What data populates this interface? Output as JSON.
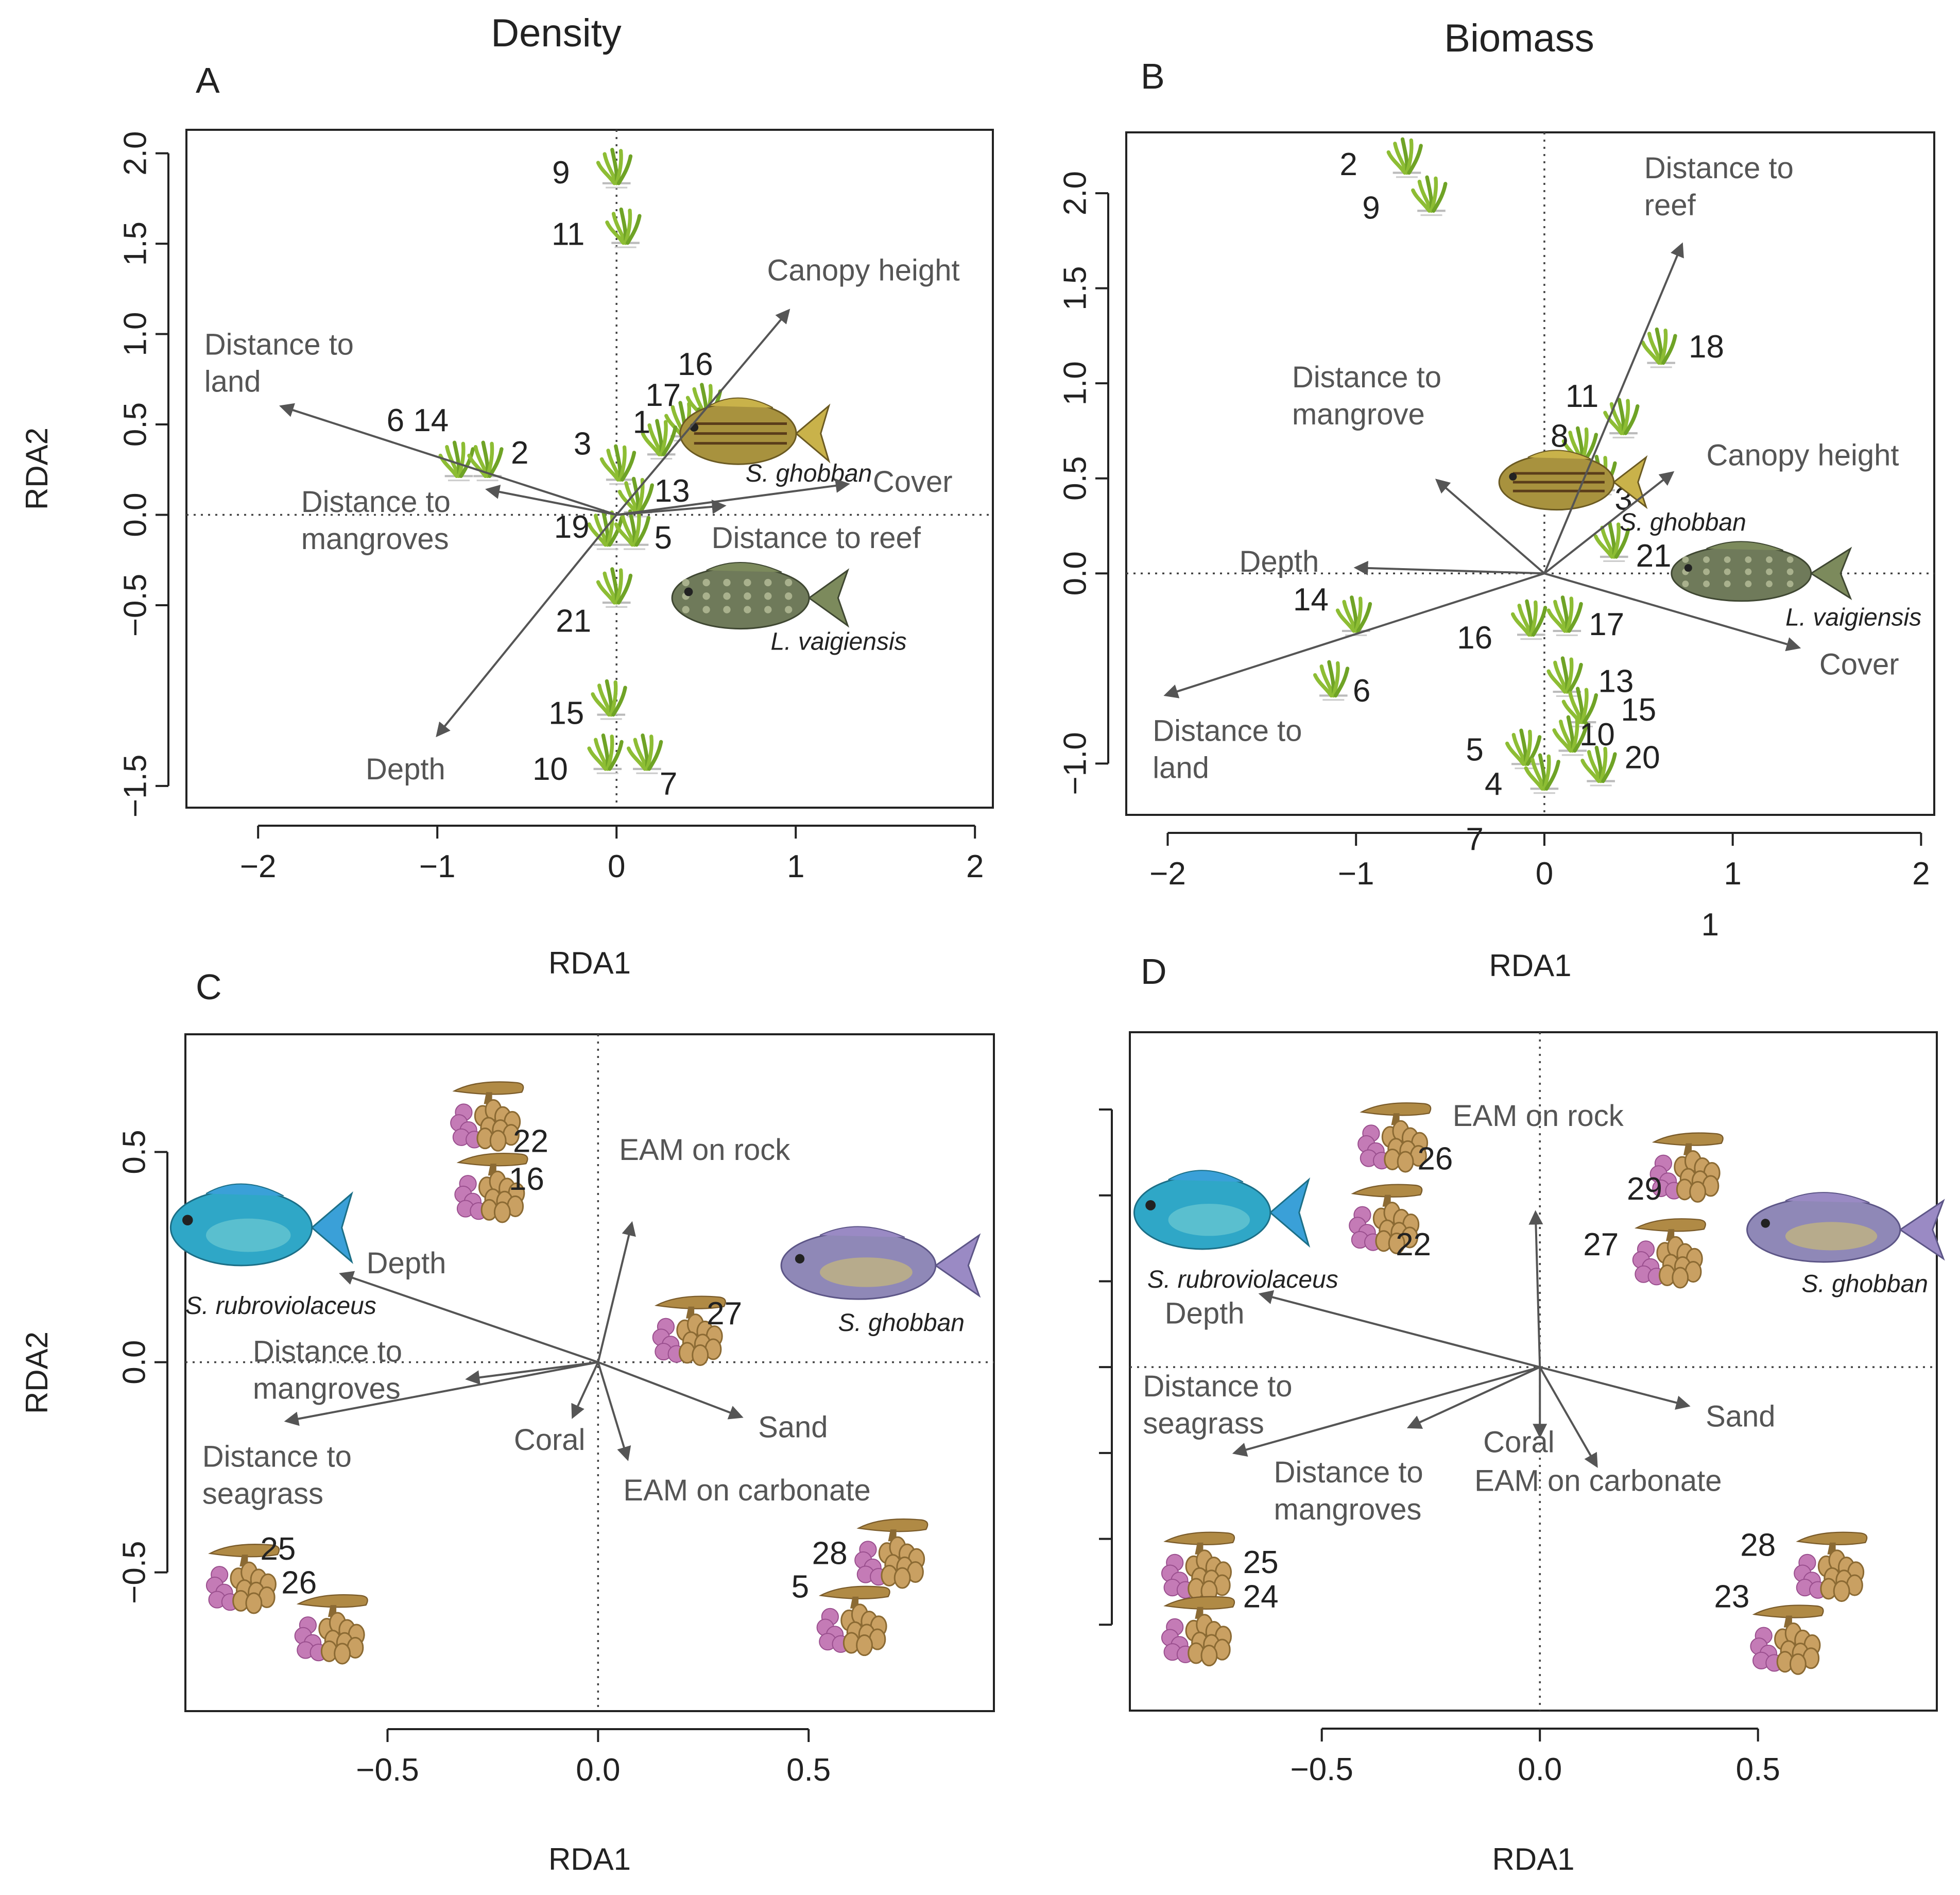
{
  "figure": {
    "column_titles": [
      "Density",
      "Biomass"
    ],
    "ylabel": "RDA2"
  },
  "colors": {
    "axis": "#222222",
    "vector": "#555555",
    "seagrass": "#8dbd34",
    "coral_purple": "#c47bb6",
    "coral_tan": "#b08a45"
  },
  "chart_data": [
    {
      "panel": "A",
      "type": "scatter",
      "title": "Density",
      "xlabel": "RDA1",
      "ylabel": "RDA2",
      "xlim": [
        -2.4,
        2.1
      ],
      "ylim": [
        -1.62,
        2.13
      ],
      "xticks": [
        -2,
        -1,
        0,
        1,
        2
      ],
      "xtick_labels": [
        "−2",
        "−1",
        "0",
        "1",
        "2"
      ],
      "yticks": [
        -1.5,
        -0.5,
        0.0,
        0.5,
        1.0,
        1.5,
        2.0
      ],
      "ytick_labels": [
        "−1.5",
        "−0.5",
        "0.0",
        "0.5",
        "1.0",
        "1.5",
        "2.0"
      ],
      "grid": false,
      "site_icon": "seagrass-icon",
      "vectors": [
        {
          "name": "Distance to land",
          "label": [
            "Distance to",
            "land"
          ],
          "x": -1.87,
          "y": 0.6,
          "lx": -2.3,
          "ly": 0.93
        },
        {
          "name": "Distance to mangroves",
          "label": [
            "Distance to",
            "mangroves"
          ],
          "x": -0.72,
          "y": 0.14,
          "lx": -1.76,
          "ly": 0.06
        },
        {
          "name": "Canopy height",
          "label": [
            "Canopy height"
          ],
          "x": 0.96,
          "y": 1.13,
          "lx": 0.84,
          "ly": 1.34
        },
        {
          "name": "Cover",
          "label": [
            "Cover"
          ],
          "x": 1.29,
          "y": 0.17,
          "lx": 1.43,
          "ly": 0.17
        },
        {
          "name": "Distance to reef",
          "label": [
            "Distance to reef"
          ],
          "x": 0.6,
          "y": 0.05,
          "lx": 0.53,
          "ly": -0.14
        },
        {
          "name": "Depth",
          "label": [
            "Depth"
          ],
          "x": -1.0,
          "y": -1.22,
          "lx": -1.4,
          "ly": -1.42
        }
      ],
      "sites": [
        {
          "label": "9",
          "x": 0.0,
          "y": 1.9,
          "lx": -0.31,
          "ly": 1.88
        },
        {
          "label": "11",
          "x": 0.05,
          "y": 1.57,
          "lx": -0.27,
          "ly": 1.54
        },
        {
          "label": "6 14",
          "x": -0.88,
          "y": 0.28,
          "lx": -1.11,
          "ly": 0.51
        },
        {
          "label": "2",
          "x": -0.72,
          "y": 0.28,
          "lx": -0.54,
          "ly": 0.33
        },
        {
          "label": "16",
          "x": 0.5,
          "y": 0.6,
          "lx": 0.44,
          "ly": 0.82
        },
        {
          "label": "17",
          "x": 0.38,
          "y": 0.5,
          "lx": 0.26,
          "ly": 0.65
        },
        {
          "label": "1",
          "x": 0.25,
          "y": 0.4,
          "lx": 0.14,
          "ly": 0.5
        },
        {
          "label": "3",
          "x": 0.02,
          "y": 0.26,
          "lx": -0.19,
          "ly": 0.38
        },
        {
          "label": "13",
          "x": 0.12,
          "y": 0.08,
          "lx": 0.31,
          "ly": 0.12
        },
        {
          "label": "19",
          "x": -0.05,
          "y": -0.1,
          "lx": -0.25,
          "ly": -0.08
        },
        {
          "label": "5",
          "x": 0.1,
          "y": -0.1,
          "lx": 0.26,
          "ly": -0.14
        },
        {
          "label": "21",
          "x": 0.0,
          "y": -0.42,
          "lx": -0.24,
          "ly": -0.6
        },
        {
          "label": "15",
          "x": -0.03,
          "y": -1.04,
          "lx": -0.28,
          "ly": -1.11
        },
        {
          "label": "10",
          "x": -0.05,
          "y": -1.34,
          "lx": -0.37,
          "ly": -1.42
        },
        {
          "label": "7",
          "x": 0.17,
          "y": -1.34,
          "lx": 0.29,
          "ly": -1.5
        }
      ],
      "species": [
        {
          "name": "S. ghobban",
          "label": "S. ghobban",
          "kind": "wrasse-striped",
          "x": 0.77,
          "y": 0.45,
          "lx": 0.72,
          "ly": 0.22,
          "w": 0.83,
          "h": 0.34
        },
        {
          "name": "L. vaigiensis",
          "label": "L. vaigiensis",
          "kind": "wrasse-mottled",
          "x": 0.8,
          "y": -0.46,
          "lx": 0.86,
          "ly": -0.71,
          "w": 0.98,
          "h": 0.34
        }
      ]
    },
    {
      "panel": "B",
      "type": "scatter",
      "title": "Biomass",
      "xlabel": "RDA1",
      "ylabel": "RDA2",
      "xlim": [
        -2.22,
        2.07
      ],
      "ylim": [
        -1.27,
        2.32
      ],
      "xticks": [
        -2,
        -1,
        0,
        1,
        2
      ],
      "xtick_labels": [
        "−2",
        "−1",
        "0",
        "1",
        "2"
      ],
      "yticks": [
        -1.0,
        0.0,
        0.5,
        1.0,
        1.5,
        2.0
      ],
      "ytick_labels": [
        "−1.0",
        "0.0",
        "0.5",
        "1.0",
        "1.5",
        "2.0"
      ],
      "grid": false,
      "site_icon": "seagrass-icon",
      "vectors": [
        {
          "name": "Distance to reef",
          "label": [
            "Distance to",
            "reef"
          ],
          "x": 0.73,
          "y": 1.73,
          "lx": 0.53,
          "ly": 2.12
        },
        {
          "name": "Distance to mangrove",
          "label": [
            "Distance to",
            "mangrove"
          ],
          "x": -0.57,
          "y": 0.49,
          "lx": -1.34,
          "ly": 1.02
        },
        {
          "name": "Canopy height",
          "label": [
            "Canopy height"
          ],
          "x": 0.68,
          "y": 0.53,
          "lx": 0.86,
          "ly": 0.61
        },
        {
          "name": "Depth",
          "label": [
            "Depth"
          ],
          "x": -1.0,
          "y": 0.03,
          "lx": -1.62,
          "ly": 0.05
        },
        {
          "name": "Cover",
          "label": [
            "Cover"
          ],
          "x": 1.35,
          "y": -0.39,
          "lx": 1.46,
          "ly": -0.49
        },
        {
          "name": "Distance to land",
          "label": [
            "Distance to",
            "land"
          ],
          "x": -2.01,
          "y": -0.64,
          "lx": -2.08,
          "ly": -0.84
        }
      ],
      "sites": [
        {
          "label": "2",
          "x": -0.73,
          "y": 2.17,
          "lx": -1.04,
          "ly": 2.14
        },
        {
          "label": "9",
          "x": -0.6,
          "y": 1.97,
          "lx": -0.92,
          "ly": 1.91
        },
        {
          "label": "18",
          "x": 0.62,
          "y": 1.17,
          "lx": 0.86,
          "ly": 1.18
        },
        {
          "label": "11",
          "x": 0.42,
          "y": 0.8,
          "lx": 0.2,
          "ly": 0.92
        },
        {
          "label": "8",
          "x": 0.2,
          "y": 0.65,
          "lx": 0.08,
          "ly": 0.71
        },
        {
          "label": "3",
          "x": 0.3,
          "y": 0.5,
          "lx": 0.42,
          "ly": 0.38
        },
        {
          "label": "21",
          "x": 0.37,
          "y": 0.15,
          "lx": 0.58,
          "ly": 0.08
        },
        {
          "label": "14",
          "x": -1.0,
          "y": -0.24,
          "lx": -1.24,
          "ly": -0.15
        },
        {
          "label": "6",
          "x": -1.12,
          "y": -0.58,
          "lx": -0.97,
          "ly": -0.63
        },
        {
          "label": "16",
          "x": -0.07,
          "y": -0.26,
          "lx": -0.37,
          "ly": -0.35
        },
        {
          "label": "17",
          "x": 0.12,
          "y": -0.24,
          "lx": 0.33,
          "ly": -0.28
        },
        {
          "label": "13",
          "x": 0.12,
          "y": -0.56,
          "lx": 0.38,
          "ly": -0.58
        },
        {
          "label": "15",
          "x": 0.2,
          "y": -0.72,
          "lx": 0.5,
          "ly": -0.73
        },
        {
          "label": "10",
          "x": 0.15,
          "y": -0.87,
          "lx": 0.28,
          "ly": -0.86
        },
        {
          "label": "20",
          "x": 0.3,
          "y": -1.03,
          "lx": 0.52,
          "ly": -0.98
        },
        {
          "label": "5",
          "x": -0.1,
          "y": -0.94,
          "lx": -0.37,
          "ly": -0.94
        },
        {
          "label": "4",
          "x": 0.0,
          "y": -1.07,
          "lx": -0.27,
          "ly": -1.12
        },
        {
          "label": "7",
          "x": -0.37,
          "y": -1.41,
          "lx": -0.37,
          "ly": -1.41
        },
        {
          "label": "1",
          "x": 0.88,
          "y": -1.86,
          "lx": 0.88,
          "ly": -1.86
        }
      ],
      "species": [
        {
          "name": "S. ghobban",
          "label": "S. ghobban",
          "kind": "wrasse-striped",
          "x": 0.15,
          "y": 0.48,
          "lx": 0.4,
          "ly": 0.26,
          "w": 0.78,
          "h": 0.29
        },
        {
          "name": "L. vaigiensis",
          "label": "L. vaigiensis",
          "kind": "wrasse-mottled",
          "x": 1.15,
          "y": 0.0,
          "lx": 1.28,
          "ly": -0.24,
          "w": 0.95,
          "h": 0.29
        }
      ]
    },
    {
      "panel": "C",
      "type": "scatter",
      "title": "",
      "xlabel": "RDA1",
      "ylabel": "RDA2",
      "xlim": [
        -0.98,
        0.94
      ],
      "ylim": [
        -0.83,
        0.78
      ],
      "xticks": [
        -0.5,
        0.0,
        0.5
      ],
      "xtick_labels": [
        "−0.5",
        "0.0",
        "0.5"
      ],
      "yticks": [
        -0.5,
        0.0,
        0.5
      ],
      "ytick_labels": [
        "−0.5",
        "0.0",
        "0.5"
      ],
      "grid": false,
      "site_icon": "coral-icon",
      "vectors": [
        {
          "name": "EAM on rock",
          "label": [
            "EAM on rock"
          ],
          "x": 0.08,
          "y": 0.33,
          "lx": 0.05,
          "ly": 0.5
        },
        {
          "name": "Depth",
          "label": [
            "Depth"
          ],
          "x": -0.61,
          "y": 0.21,
          "lx": -0.55,
          "ly": 0.23
        },
        {
          "name": "Distance to mangroves",
          "label": [
            "Distance to",
            "mangroves"
          ],
          "x": -0.31,
          "y": -0.04,
          "lx": -0.82,
          "ly": 0.02
        },
        {
          "name": "Distance to seagrass",
          "label": [
            "Distance to",
            "seagrass"
          ],
          "x": -0.74,
          "y": -0.14,
          "lx": -0.94,
          "ly": -0.23
        },
        {
          "name": "Coral",
          "label": [
            "Coral"
          ],
          "x": -0.06,
          "y": -0.13,
          "lx": -0.2,
          "ly": -0.19
        },
        {
          "name": "Sand",
          "label": [
            "Sand"
          ],
          "x": 0.34,
          "y": -0.13,
          "lx": 0.38,
          "ly": -0.16
        },
        {
          "name": "EAM on carbonate",
          "label": [
            "EAM on carbonate"
          ],
          "x": 0.07,
          "y": -0.23,
          "lx": 0.06,
          "ly": -0.31
        }
      ],
      "sites": [
        {
          "label": "22",
          "x": -0.26,
          "y": 0.6,
          "lx": -0.16,
          "ly": 0.52
        },
        {
          "label": "16",
          "x": -0.25,
          "y": 0.43,
          "lx": -0.17,
          "ly": 0.43
        },
        {
          "label": "27",
          "x": 0.22,
          "y": 0.09,
          "lx": 0.3,
          "ly": 0.11
        },
        {
          "label": "25",
          "x": -0.84,
          "y": -0.5,
          "lx": -0.76,
          "ly": -0.45
        },
        {
          "label": "26",
          "x": -0.63,
          "y": -0.62,
          "lx": -0.71,
          "ly": -0.53
        },
        {
          "label": "28",
          "x": 0.7,
          "y": -0.44,
          "lx": 0.55,
          "ly": -0.46
        },
        {
          "label": "5",
          "x": 0.61,
          "y": -0.6,
          "lx": 0.48,
          "ly": -0.54
        }
      ],
      "species": [
        {
          "name": "S. rubroviolaceus",
          "label": "S. rubroviolaceus",
          "kind": "parrotfish-blue",
          "x": -0.8,
          "y": 0.32,
          "lx": -0.98,
          "ly": 0.13,
          "w": 0.43,
          "h": 0.18
        },
        {
          "name": "S. ghobban",
          "label": "S. ghobban",
          "kind": "parrotfish-purple",
          "x": 0.67,
          "y": 0.23,
          "lx": 0.57,
          "ly": 0.09,
          "w": 0.47,
          "h": 0.16
        }
      ]
    },
    {
      "panel": "D",
      "type": "scatter",
      "title": "",
      "xlabel": "RDA1",
      "ylabel": "RDA2",
      "xlim": [
        -0.94,
        0.91
      ],
      "ylim": [
        -0.8,
        0.78
      ],
      "xticks": [
        -0.5,
        0.0,
        0.5
      ],
      "xtick_labels": [
        "−0.5",
        "0.0",
        "0.5"
      ],
      "yticks": [
        -0.6,
        -0.4,
        -0.2,
        0.0,
        0.2,
        0.4,
        0.6
      ],
      "ytick_labels": [
        "",
        "",
        "",
        "",
        "",
        "",
        ""
      ],
      "grid": false,
      "site_icon": "coral-icon",
      "vectors": [
        {
          "name": "EAM on rock",
          "label": [
            "EAM on rock"
          ],
          "x": -0.01,
          "y": 0.36,
          "lx": -0.2,
          "ly": 0.58
        },
        {
          "name": "Depth",
          "label": [
            "Depth"
          ],
          "x": -0.64,
          "y": 0.17,
          "lx": -0.86,
          "ly": 0.12
        },
        {
          "name": "Distance to seagrass",
          "label": [
            "Distance to",
            "seagrass"
          ],
          "x": -0.7,
          "y": -0.2,
          "lx": -0.91,
          "ly": -0.05
        },
        {
          "name": "Distance to mangroves",
          "label": [
            "Distance to",
            "mangroves"
          ],
          "x": -0.3,
          "y": -0.14,
          "lx": -0.61,
          "ly": -0.25
        },
        {
          "name": "Coral",
          "label": [
            "Coral"
          ],
          "x": 0.0,
          "y": -0.16,
          "lx": -0.13,
          "ly": -0.18
        },
        {
          "name": "EAM on carbonate",
          "label": [
            "EAM on carbonate"
          ],
          "x": 0.13,
          "y": -0.23,
          "lx": -0.15,
          "ly": -0.27
        },
        {
          "name": "Sand",
          "label": [
            "Sand"
          ],
          "x": 0.34,
          "y": -0.09,
          "lx": 0.38,
          "ly": -0.12
        }
      ],
      "sites": [
        {
          "label": "26",
          "x": -0.33,
          "y": 0.55,
          "lx": -0.24,
          "ly": 0.48
        },
        {
          "label": "22",
          "x": -0.35,
          "y": 0.36,
          "lx": -0.29,
          "ly": 0.28
        },
        {
          "label": "29",
          "x": 0.34,
          "y": 0.48,
          "lx": 0.24,
          "ly": 0.41
        },
        {
          "label": "27",
          "x": 0.3,
          "y": 0.28,
          "lx": 0.14,
          "ly": 0.28
        },
        {
          "label": "25",
          "x": -0.78,
          "y": -0.45,
          "lx": -0.64,
          "ly": -0.46
        },
        {
          "label": "24",
          "x": -0.78,
          "y": -0.6,
          "lx": -0.64,
          "ly": -0.54
        },
        {
          "label": "28",
          "x": 0.67,
          "y": -0.45,
          "lx": 0.5,
          "ly": -0.42
        },
        {
          "label": "23",
          "x": 0.57,
          "y": -0.62,
          "lx": 0.44,
          "ly": -0.54
        }
      ],
      "species": [
        {
          "name": "S. rubroviolaceus",
          "label": "S. rubroviolaceus",
          "kind": "parrotfish-blue",
          "x": -0.73,
          "y": 0.36,
          "lx": -0.9,
          "ly": 0.2,
          "w": 0.4,
          "h": 0.17
        },
        {
          "name": "S. ghobban",
          "label": "S. ghobban",
          "kind": "parrotfish-purple",
          "x": 0.7,
          "y": 0.32,
          "lx": 0.6,
          "ly": 0.19,
          "w": 0.45,
          "h": 0.15
        }
      ]
    }
  ]
}
